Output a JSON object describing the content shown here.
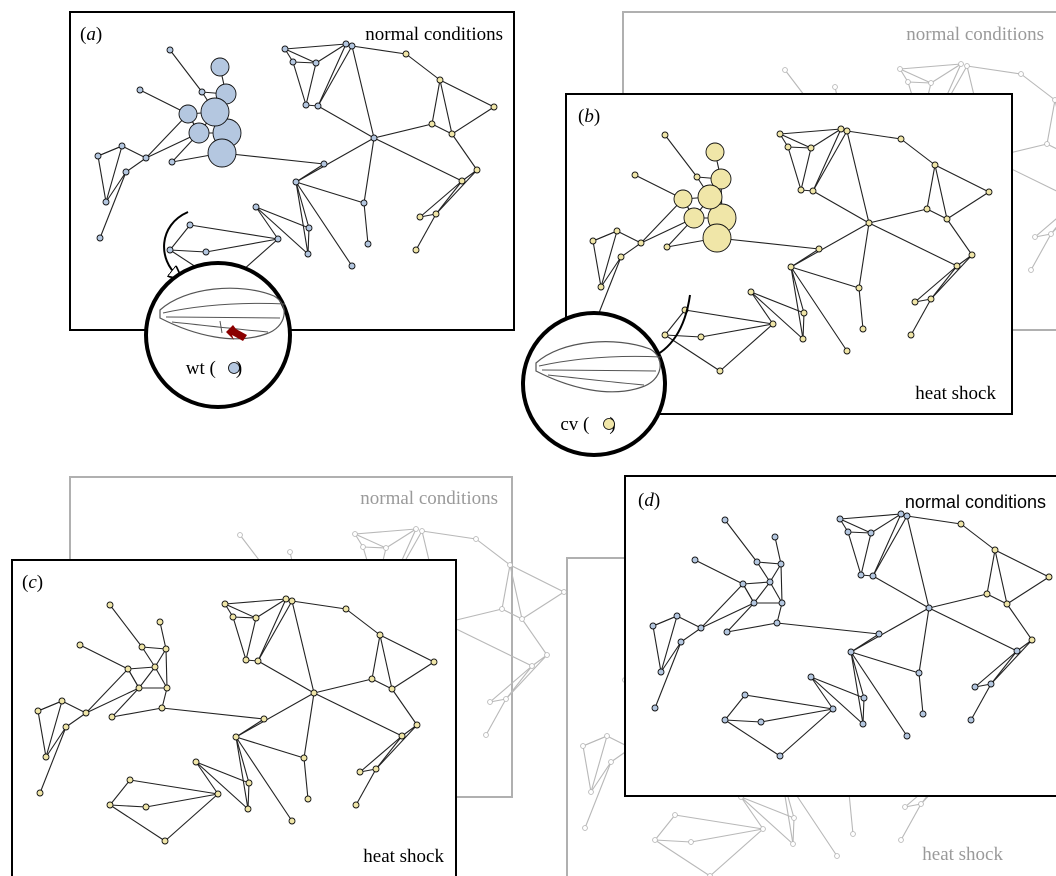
{
  "panels": {
    "a": {
      "label": "(a)",
      "letter": "a",
      "condition": "normal conditions",
      "inset_label": "wt (",
      "inset_label_end": ")"
    },
    "b": {
      "label": "(b)",
      "letter": "b",
      "condition": "heat shock",
      "bg_condition": "normal conditions",
      "inset_label": "cv (",
      "inset_label_end": ")"
    },
    "c": {
      "label": "(c)",
      "letter": "c",
      "condition": "heat shock",
      "bg_condition": "normal conditions"
    },
    "d": {
      "label": "(d)",
      "letter": "d",
      "condition": "normal conditions",
      "bg_condition": "heat shock"
    }
  },
  "colors": {
    "blue_node": "#b4c7e0",
    "yellow_node": "#f0e6a8",
    "frame": "#000000",
    "ghost": "#b0b0b0",
    "arrow_red": "#8b0000"
  }
}
